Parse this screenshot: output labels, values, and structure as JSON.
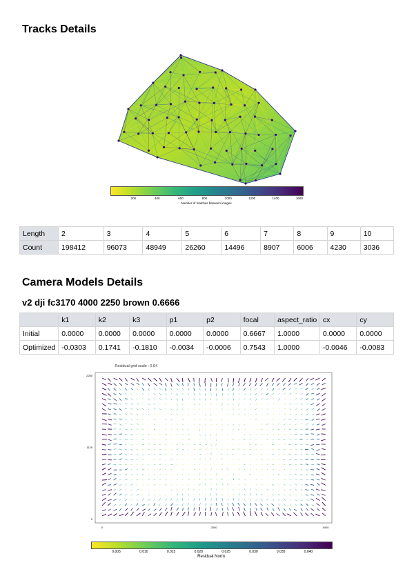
{
  "tracks": {
    "title": "Tracks Details",
    "colorbar_label": "Number of matches between images",
    "colorbar_ticks": [
      "200",
      "400",
      "600",
      "800",
      "1000",
      "1200",
      "1400",
      "1600"
    ],
    "table": {
      "row_labels": [
        "Length",
        "Count"
      ],
      "lengths": [
        "2",
        "3",
        "4",
        "5",
        "6",
        "7",
        "8",
        "9",
        "10"
      ],
      "counts": [
        "198412",
        "96073",
        "48949",
        "26260",
        "14496",
        "8907",
        "6006",
        "4230",
        "3036"
      ]
    }
  },
  "camera": {
    "title": "Camera Models Details",
    "model_name": "v2 dji fc3170 4000 2250 brown 0.6666",
    "table": {
      "headers": [
        "",
        "k1",
        "k2",
        "k3",
        "p1",
        "p2",
        "focal",
        "aspect_ratio",
        "cx",
        "cy"
      ],
      "rows": [
        [
          "Initial",
          "0.0000",
          "0.0000",
          "0.0000",
          "0.0000",
          "0.0000",
          "0.6667",
          "1.0000",
          "0.0000",
          "0.0000"
        ],
        [
          "Optimized",
          "-0.0303",
          "0.1741",
          "-0.1810",
          "-0.0034",
          "-0.0006",
          "0.7543",
          "1.0000",
          "-0.0046",
          "-0.0083"
        ]
      ]
    },
    "residual_legend": "Residual grid scale : 0.04",
    "residual_xticks": [
      "0",
      "2000",
      "4000"
    ],
    "residual_yticks": [
      "2250",
      "1125",
      "0"
    ],
    "residual_colorbar_label": "Residual Norm",
    "residual_colorbar_ticks": [
      "0.005",
      "0.010",
      "0.015",
      "0.020",
      "0.025",
      "0.030",
      "0.035",
      "0.040"
    ]
  },
  "colors": {
    "viridis_start": "#fde725",
    "viridis_mid": "#21918c",
    "viridis_end": "#440154",
    "table_header": "#dde0e4"
  }
}
